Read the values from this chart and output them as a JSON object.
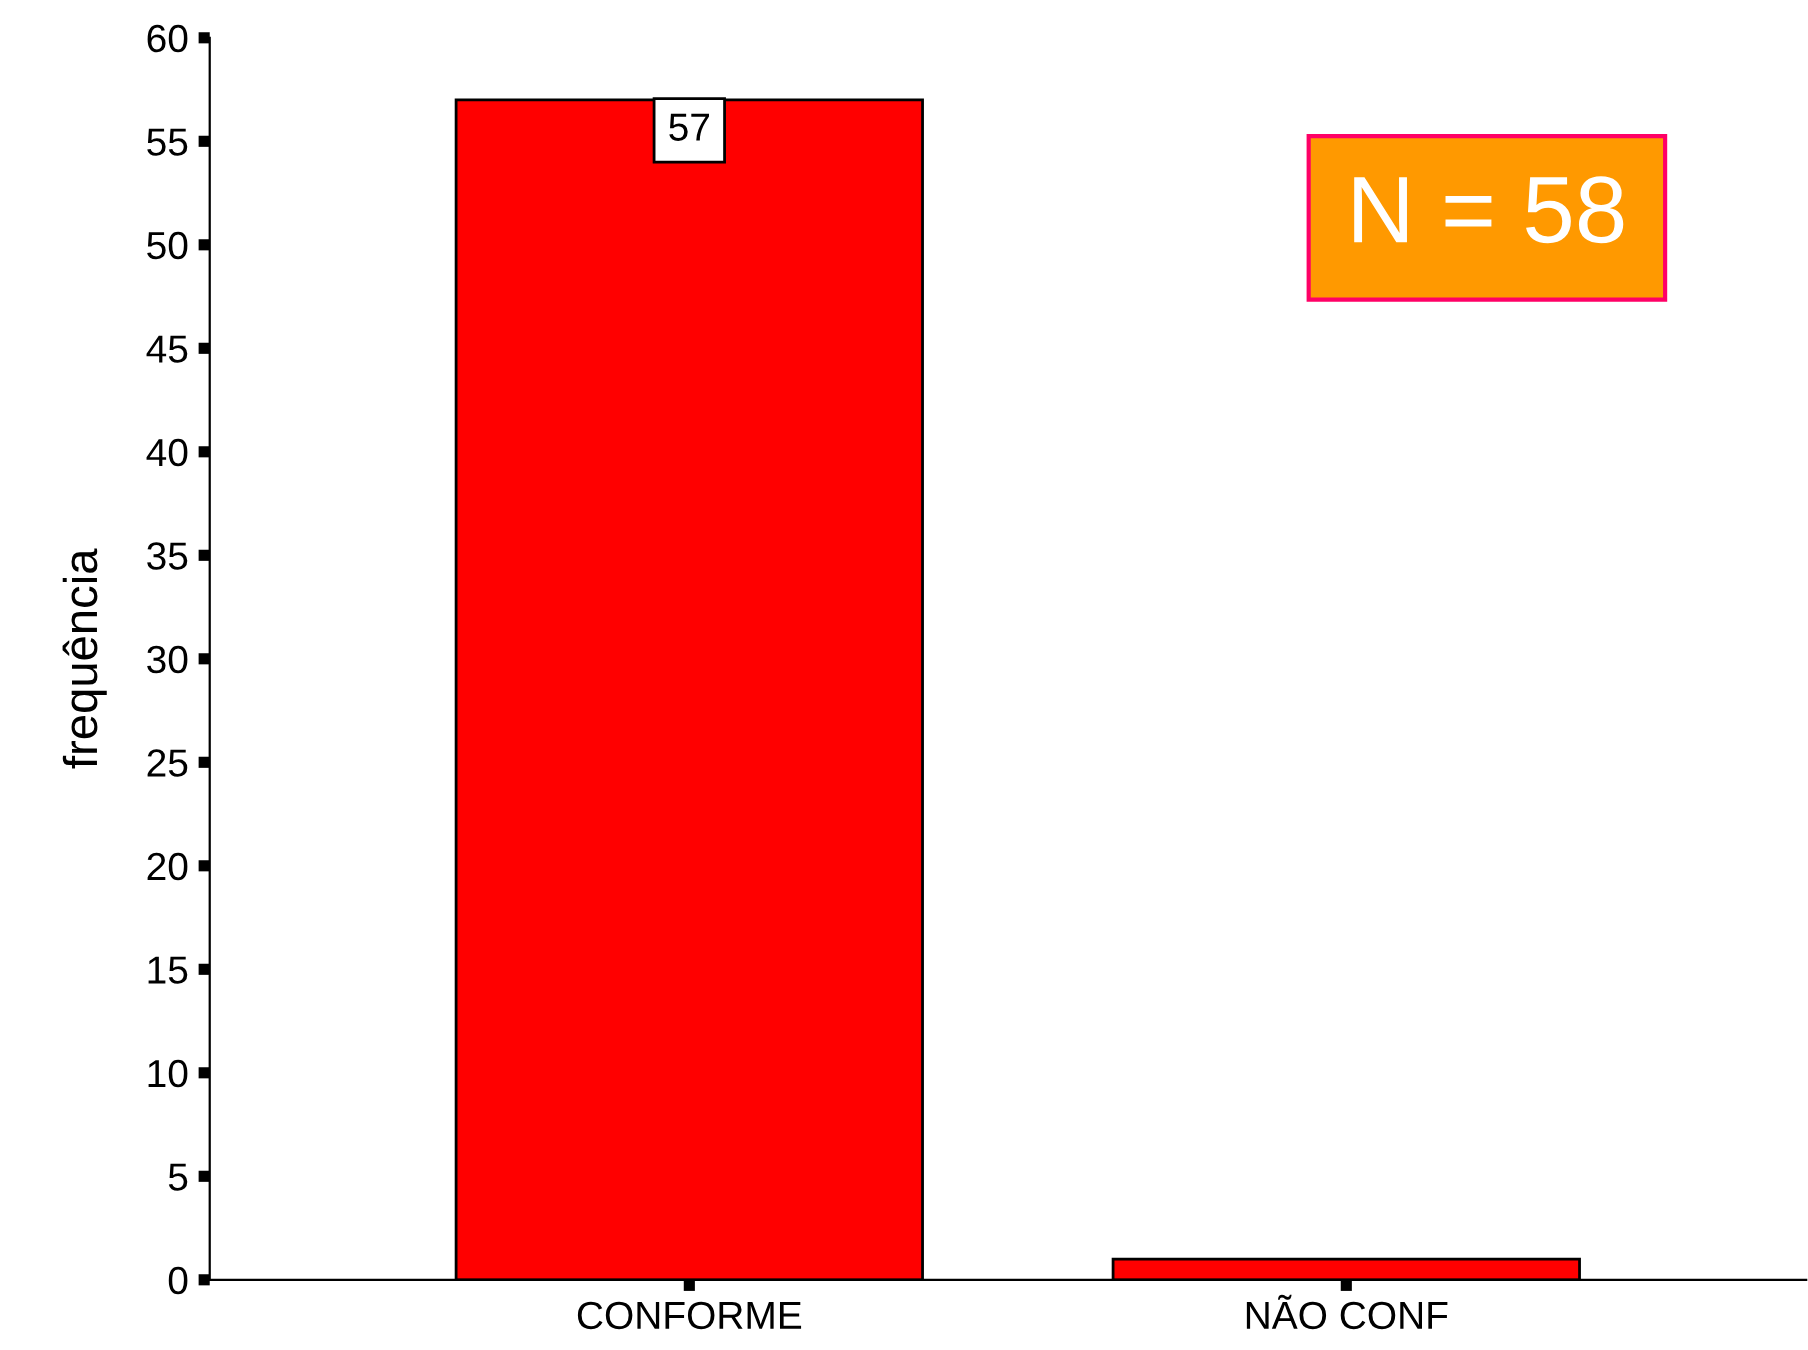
{
  "chart_data": {
    "type": "bar",
    "ylabel": "frequência",
    "categories": [
      "CONFORME",
      "NÃO CONF"
    ],
    "values": [
      57,
      1
    ],
    "color": "#ff0000",
    "value_labels": [
      "57",
      null
    ],
    "ylim": [
      0,
      60
    ],
    "yticks": [
      0,
      5,
      10,
      15,
      20,
      25,
      30,
      35,
      40,
      45,
      50,
      55,
      60
    ],
    "grid": false,
    "legend": false,
    "annotations": [
      "N = 58"
    ]
  }
}
